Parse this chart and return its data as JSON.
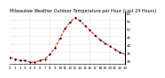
{
  "title": "Milwaukee Weather Outdoor Temperature per Hour (Last 24 Hours)",
  "hours": [
    0,
    1,
    2,
    3,
    4,
    5,
    6,
    7,
    8,
    9,
    10,
    11,
    12,
    13,
    14,
    15,
    16,
    17,
    18,
    19,
    20,
    21,
    22,
    23
  ],
  "temps": [
    32,
    31,
    30,
    30,
    29,
    29,
    30,
    31,
    34,
    38,
    44,
    50,
    54,
    57,
    55,
    52,
    49,
    46,
    43,
    41,
    39,
    37,
    35,
    34
  ],
  "line_color": "#ff0000",
  "marker_color": "#000000",
  "bg_color": "#ffffff",
  "grid_color": "#aaaaaa",
  "ylim_min": 28,
  "ylim_max": 60,
  "yticks": [
    30,
    35,
    40,
    45,
    50,
    55,
    60
  ],
  "vgrid_positions": [
    4,
    8,
    12,
    16,
    20
  ],
  "title_fontsize": 3.5,
  "tick_fontsize": 2.8,
  "line_width": 0.7,
  "marker_size": 1.2
}
